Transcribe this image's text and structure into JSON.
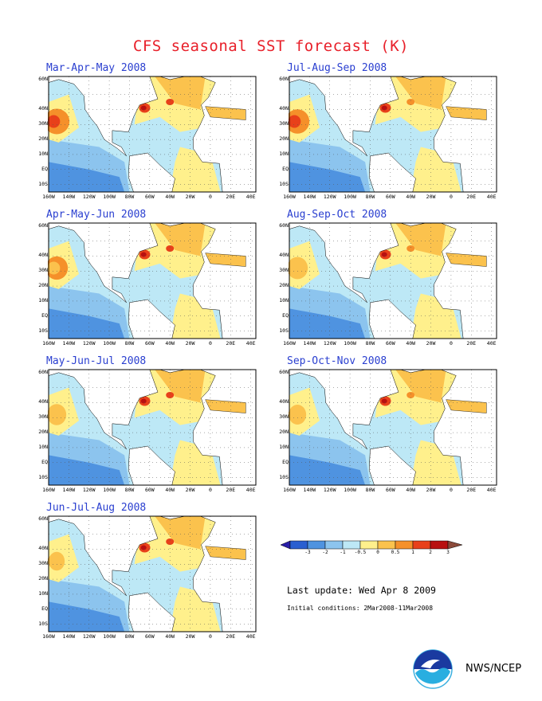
{
  "title": "CFS seasonal SST forecast (K)",
  "panels": [
    {
      "title": "Mar-Apr-May 2008"
    },
    {
      "title": "Jul-Aug-Sep 2008"
    },
    {
      "title": "Apr-May-Jun 2008"
    },
    {
      "title": "Aug-Sep-Oct 2008"
    },
    {
      "title": "May-Jun-Jul 2008"
    },
    {
      "title": "Sep-Oct-Nov 2008"
    },
    {
      "title": "Jun-Jul-Aug 2008"
    }
  ],
  "y_ticks": [
    "60N",
    "40N",
    "30N",
    "20N",
    "10N",
    "EQ",
    "10S"
  ],
  "x_ticks": [
    "160W",
    "140W",
    "120W",
    "100W",
    "80W",
    "60W",
    "40W",
    "20W",
    "0",
    "20E",
    "40E"
  ],
  "colorbar": {
    "labels": [
      "-3",
      "-2",
      "-1",
      "-0.5",
      "0",
      "0.5",
      "1",
      "2",
      "3"
    ],
    "colors": [
      "#2a1ea8",
      "#2a5fd0",
      "#4f93e0",
      "#8cc4ee",
      "#bde8f6",
      "#fff08c",
      "#fbc24d",
      "#f5902a",
      "#e8401a",
      "#b81010",
      "#8b4a3a"
    ]
  },
  "last_update": "Last update: Wed Apr 8 2009",
  "initial_conditions": "Initial conditions: 2Mar2008-11Mar2008",
  "credit": "NWS/NCEP",
  "logo": "noaa-logo"
}
